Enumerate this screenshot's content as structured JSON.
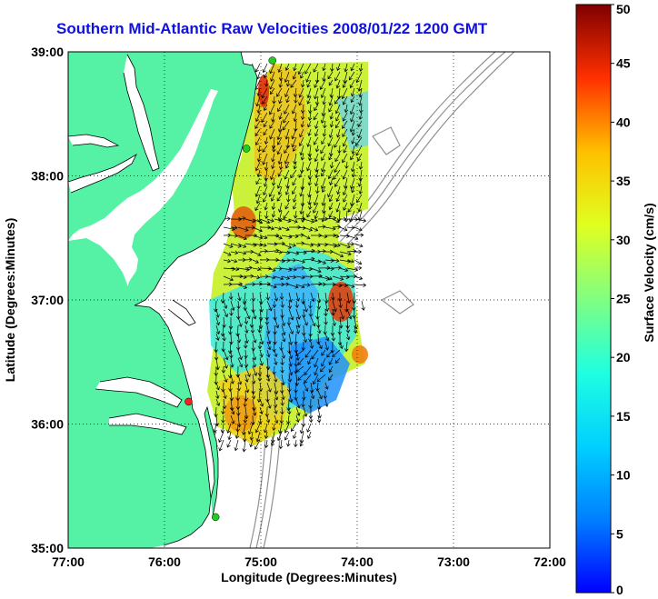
{
  "title": "Southern Mid-Atlantic Raw Velocities 2008/01/22 1200 GMT",
  "axes": {
    "xlabel": "Longitude (Degrees:Minutes)",
    "ylabel": "Latitude (Degrees:Minutes)",
    "xticks": [
      "77:00",
      "76:00",
      "75:00",
      "74:00",
      "73:00",
      "72:00"
    ],
    "yticks": [
      "39:00",
      "38:00",
      "37:00",
      "36:00",
      "35:00"
    ],
    "xlim_deg_west": [
      77,
      72
    ],
    "ylim_deg_north": [
      35,
      39
    ],
    "grid": "dotted"
  },
  "colorbar": {
    "label": "Surface Velocity (cm/s)",
    "ticks": [
      "50",
      "45",
      "40",
      "35",
      "30",
      "25",
      "20",
      "15",
      "10",
      "5",
      "0"
    ],
    "range": [
      0,
      50
    ],
    "colormap": "jet"
  },
  "colors": {
    "land": "#55f2a6",
    "title": "#1010e0",
    "coastline": "#000000",
    "bathymetry": "#808080"
  },
  "stations": [
    {
      "name": "station-north",
      "lon": -74.88,
      "lat": 38.93,
      "color": "#22cc22"
    },
    {
      "name": "station-cape-may-region",
      "lon": -75.15,
      "lat": 38.22,
      "color": "#22cc22"
    },
    {
      "name": "station-duck",
      "lon": -75.75,
      "lat": 36.18,
      "color": "#ee2222"
    },
    {
      "name": "station-hatteras",
      "lon": -75.47,
      "lat": 35.25,
      "color": "#22cc22"
    }
  ]
}
